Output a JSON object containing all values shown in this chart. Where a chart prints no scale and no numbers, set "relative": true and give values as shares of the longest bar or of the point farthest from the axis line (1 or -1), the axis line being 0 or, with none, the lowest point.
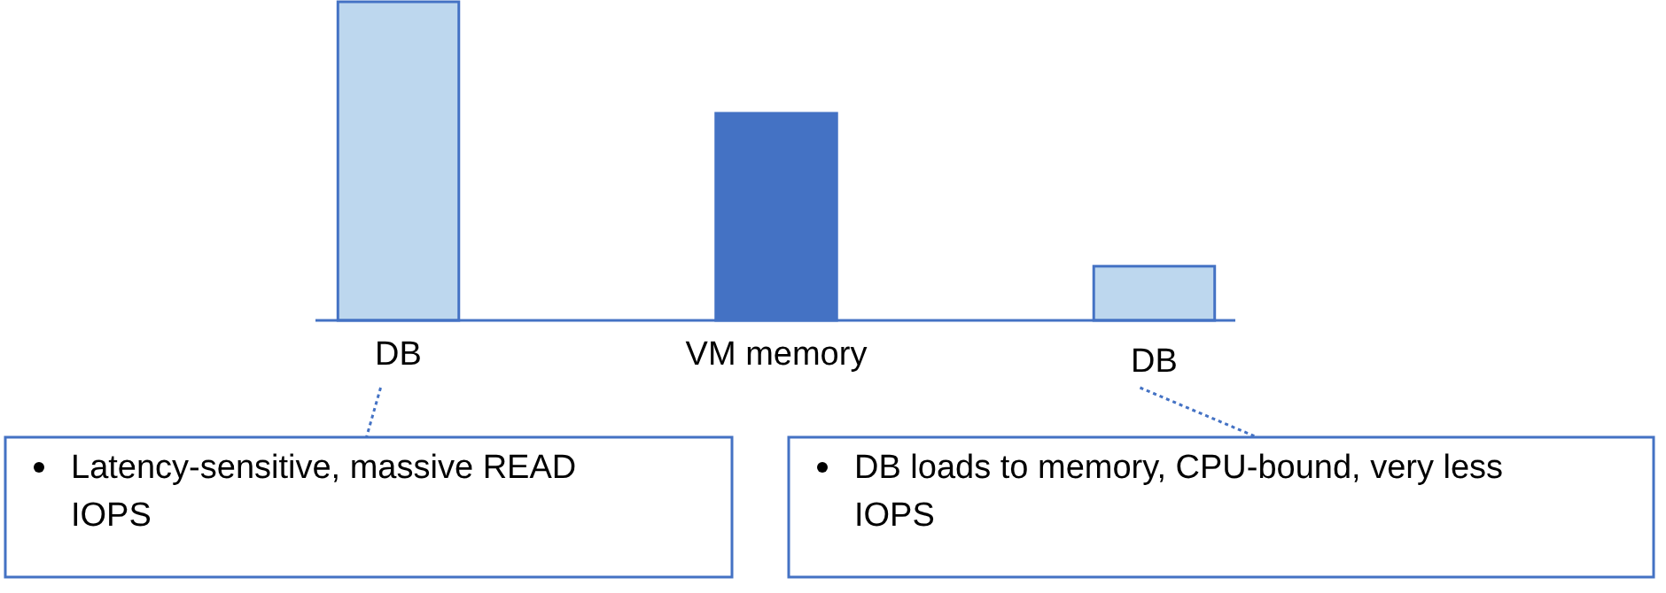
{
  "chart_data": {
    "type": "bar",
    "relative": true,
    "categories": [
      "DB",
      "VM memory",
      "DB"
    ],
    "values": [
      1,
      0.65,
      0.17
    ],
    "colors": [
      "#bdd7ee",
      "#4472c4",
      "#bdd7ee"
    ],
    "annotations": [
      "Latency-sensitive, massive READ IOPS",
      "DB loads to memory, CPU-bound, very less IOPS"
    ]
  }
}
